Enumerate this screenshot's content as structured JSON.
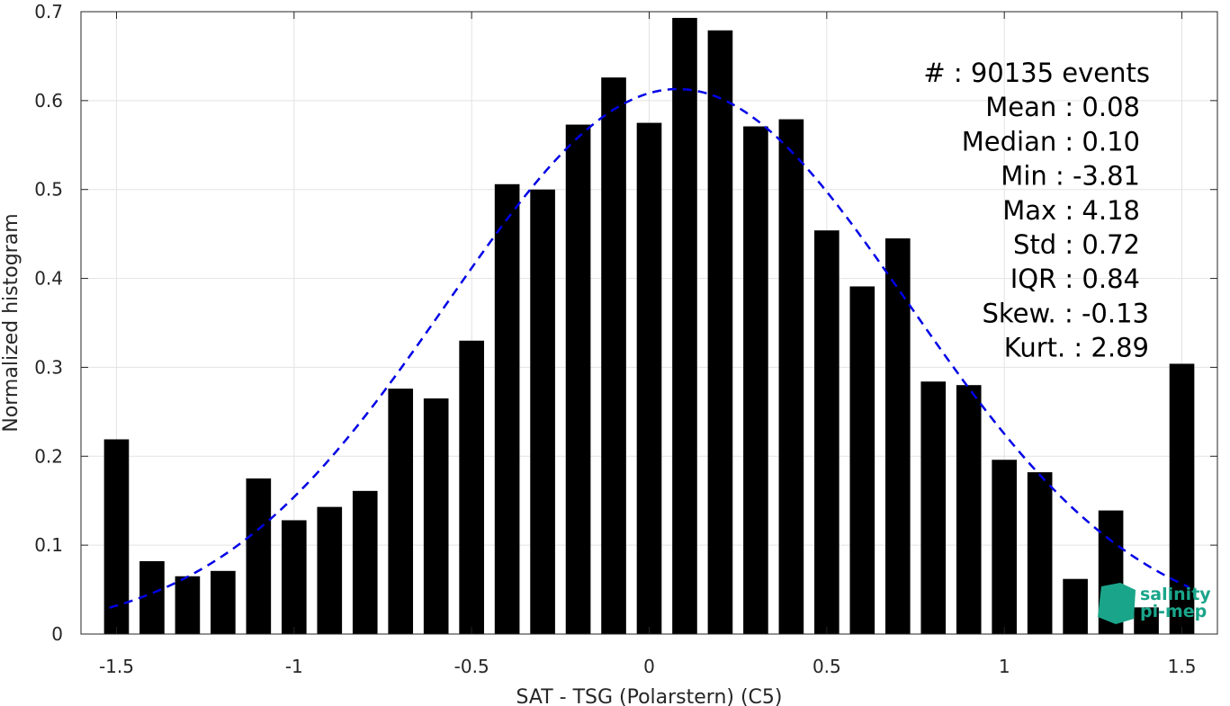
{
  "chart_data": {
    "type": "bar",
    "xlabel": "SAT - TSG (Polarstern) (C5)",
    "ylabel": "Normalized histogram",
    "xlim": [
      -1.6,
      1.6
    ],
    "ylim": [
      0,
      0.7
    ],
    "xticks": [
      -1.5,
      -1,
      -0.5,
      0,
      0.5,
      1,
      1.5
    ],
    "xtick_labels": [
      "-1.5",
      "-1",
      "-0.5",
      "0",
      "0.5",
      "1",
      "1.5"
    ],
    "yticks": [
      0,
      0.1,
      0.2,
      0.3,
      0.4,
      0.5,
      0.6,
      0.7
    ],
    "ytick_labels": [
      "0",
      "0.1",
      "0.2",
      "0.3",
      "0.4",
      "0.5",
      "0.6",
      "0.7"
    ],
    "grid": true,
    "bin_width": 0.1,
    "x": [
      -1.5,
      -1.4,
      -1.3,
      -1.2,
      -1.1,
      -1.0,
      -0.9,
      -0.8,
      -0.7,
      -0.6,
      -0.5,
      -0.4,
      -0.3,
      -0.2,
      -0.1,
      0.0,
      0.1,
      0.2,
      0.3,
      0.4,
      0.5,
      0.6,
      0.7,
      0.8,
      0.9,
      1.0,
      1.1,
      1.2,
      1.3,
      1.4,
      1.5
    ],
    "values": [
      0.219,
      0.082,
      0.065,
      0.071,
      0.175,
      0.128,
      0.143,
      0.161,
      0.276,
      0.265,
      0.33,
      0.506,
      0.5,
      0.573,
      0.626,
      0.575,
      0.693,
      0.679,
      0.571,
      0.579,
      0.454,
      0.391,
      0.445,
      0.284,
      0.28,
      0.196,
      0.182,
      0.062,
      0.139,
      0.03,
      0.304
    ],
    "bar_color": "#000000",
    "fit": {
      "type": "gaussian",
      "line_style": "dashed",
      "color": "#0000e6",
      "peak": 0.613,
      "mean": 0.08,
      "std": 0.65,
      "x_range": [
        -1.52,
        1.52
      ]
    },
    "stats": [
      "#  : 90135 events",
      "Mean : 0.08",
      "Median : 0.10",
      "Min : -3.81",
      "Max : 4.18",
      "Std : 0.72",
      "IQR : 0.84",
      "Skew. : -0.13",
      "Kurt. : 2.89"
    ]
  },
  "logo": {
    "line1": "salinity",
    "line2": "pi-mep",
    "color": "#1aa58a"
  }
}
